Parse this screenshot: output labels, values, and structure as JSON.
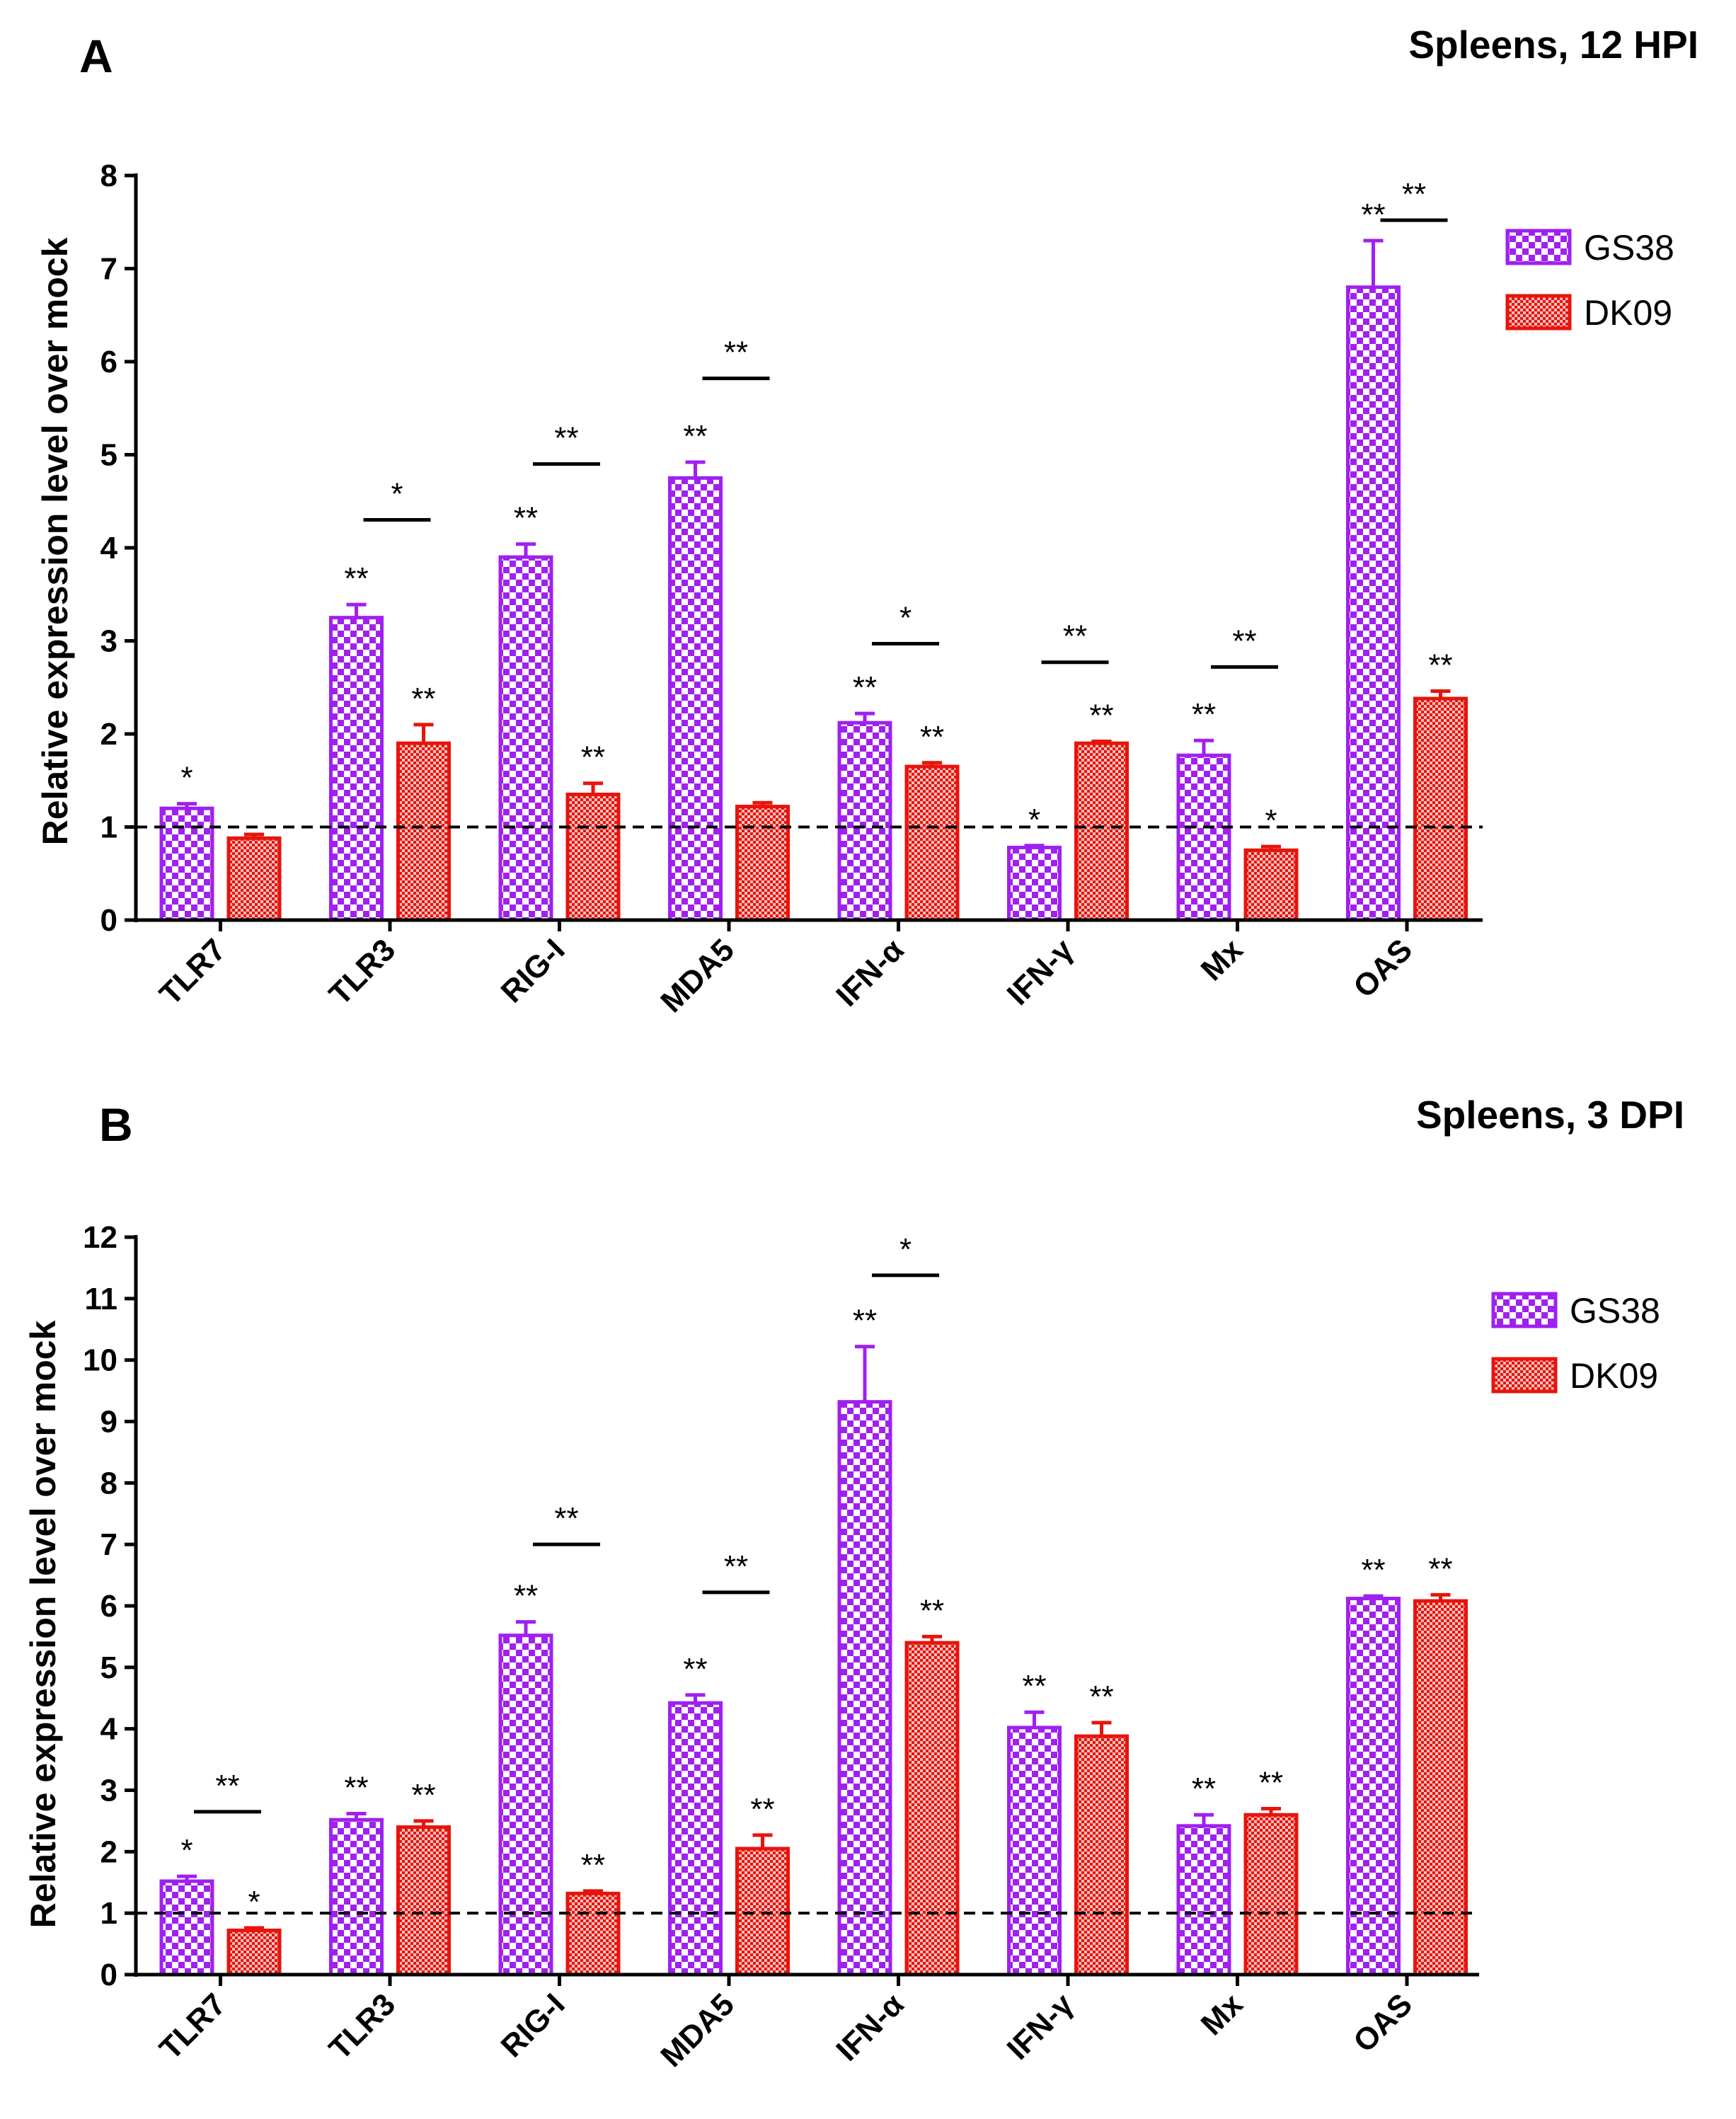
{
  "colors": {
    "GS38": "#a020f0",
    "DK09": "#e8140c",
    "axis": "#000000"
  },
  "chart_data": [
    {
      "type": "bar",
      "panel": "A",
      "title": "Spleens, 12 HPI",
      "xlabel": "",
      "ylabel": "Relative expression level over mock",
      "ylim": [
        0,
        8
      ],
      "yticks": [
        0,
        1,
        2,
        3,
        4,
        5,
        6,
        7,
        8
      ],
      "reference_line": 1,
      "legend_position": "top-right",
      "categories": [
        "TLR7",
        "TLR3",
        "RIG-I",
        "MDA5",
        "IFN-α",
        "IFN-γ",
        "Mx",
        "OAS"
      ],
      "series": [
        {
          "name": "GS38",
          "values": [
            1.2,
            3.25,
            3.9,
            4.75,
            2.12,
            0.78,
            1.77,
            6.8
          ],
          "errors": [
            0.05,
            0.14,
            0.14,
            0.17,
            0.1,
            0.02,
            0.16,
            0.5
          ],
          "marks": [
            "*",
            "**",
            "**",
            "**",
            "**",
            "*",
            "**",
            "**"
          ]
        },
        {
          "name": "DK09",
          "values": [
            0.88,
            1.9,
            1.35,
            1.22,
            1.65,
            1.9,
            0.75,
            2.38
          ],
          "errors": [
            0.04,
            0.2,
            0.12,
            0.04,
            0.04,
            0.02,
            0.04,
            0.08
          ],
          "marks": [
            "",
            "**",
            "**",
            "",
            "**",
            "**",
            "*",
            "**"
          ]
        }
      ],
      "comparisons": [
        {
          "category": "TLR3",
          "label": "*",
          "y": 4.3
        },
        {
          "category": "RIG-I",
          "label": "**",
          "y": 4.9
        },
        {
          "category": "MDA5",
          "label": "**",
          "y": 5.82
        },
        {
          "category": "IFN-α",
          "label": "*",
          "y": 2.97
        },
        {
          "category": "IFN-γ",
          "label": "**",
          "y": 2.77
        },
        {
          "category": "Mx",
          "label": "**",
          "y": 2.72
        },
        {
          "category": "OAS",
          "label": "**",
          "y": 7.52
        }
      ]
    },
    {
      "type": "bar",
      "panel": "B",
      "title": "Spleens, 3 DPI",
      "xlabel": "",
      "ylabel": "Relative expression level over mock",
      "ylim": [
        0,
        12
      ],
      "yticks": [
        0,
        1,
        2,
        3,
        4,
        5,
        6,
        7,
        8,
        9,
        10,
        11,
        12
      ],
      "reference_line": 1,
      "legend_position": "top-right",
      "categories": [
        "TLR7",
        "TLR3",
        "RIG-I",
        "MDA5",
        "IFN-α",
        "IFN-γ",
        "Mx",
        "OAS"
      ],
      "series": [
        {
          "name": "GS38",
          "values": [
            1.52,
            2.52,
            5.52,
            4.42,
            9.32,
            4.02,
            2.42,
            6.12
          ],
          "errors": [
            0.08,
            0.1,
            0.22,
            0.13,
            0.9,
            0.25,
            0.18,
            0.04
          ],
          "marks": [
            "*",
            "**",
            "**",
            "**",
            "**",
            "**",
            "**",
            "**"
          ]
        },
        {
          "name": "DK09",
          "values": [
            0.72,
            2.4,
            1.32,
            2.05,
            5.4,
            3.88,
            2.6,
            6.08
          ],
          "errors": [
            0.04,
            0.1,
            0.04,
            0.22,
            0.1,
            0.22,
            0.1,
            0.1
          ],
          "marks": [
            "*",
            "**",
            "**",
            "**",
            "**",
            "**",
            "**",
            "**"
          ]
        }
      ],
      "comparisons": [
        {
          "category": "TLR7",
          "label": "**",
          "y": 2.65
        },
        {
          "category": "RIG-I",
          "label": "**",
          "y": 7.0
        },
        {
          "category": "MDA5",
          "label": "**",
          "y": 6.22
        },
        {
          "category": "IFN-α",
          "label": "*",
          "y": 11.38
        }
      ]
    }
  ]
}
